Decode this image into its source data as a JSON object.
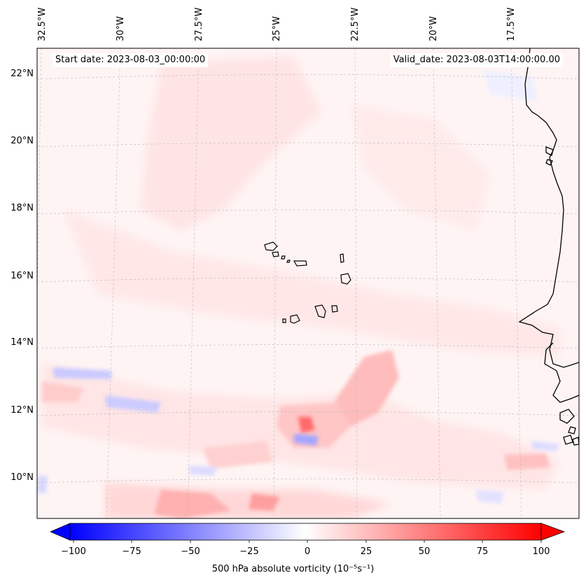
{
  "header": {
    "start_date": "Start date: 2023-08-03_00:00:00",
    "valid_date": "Valid_date: 2023-08-03T14:00:00.00"
  },
  "map": {
    "longitude_labels": [
      "32.5°W",
      "30°W",
      "27.5°W",
      "25°W",
      "22.5°W",
      "20°W",
      "17.5°W"
    ],
    "latitude_labels": [
      "22°N",
      "20°N",
      "18°N",
      "16°N",
      "14°N",
      "12°N",
      "10°N"
    ],
    "field": "500 hPa absolute vorticity",
    "colormap": "bwr",
    "background_color": "#fff4f4"
  },
  "colorbar": {
    "label": "500 hPa absolute vorticity (10⁻⁵s⁻¹)",
    "ticks": [
      "−100",
      "−75",
      "−50",
      "−25",
      "0",
      "25",
      "50",
      "75",
      "100"
    ],
    "min": -100,
    "max": 100,
    "extend": "both",
    "low_color": "#0000ff",
    "mid_color": "#ffffff",
    "high_color": "#ff0000"
  }
}
